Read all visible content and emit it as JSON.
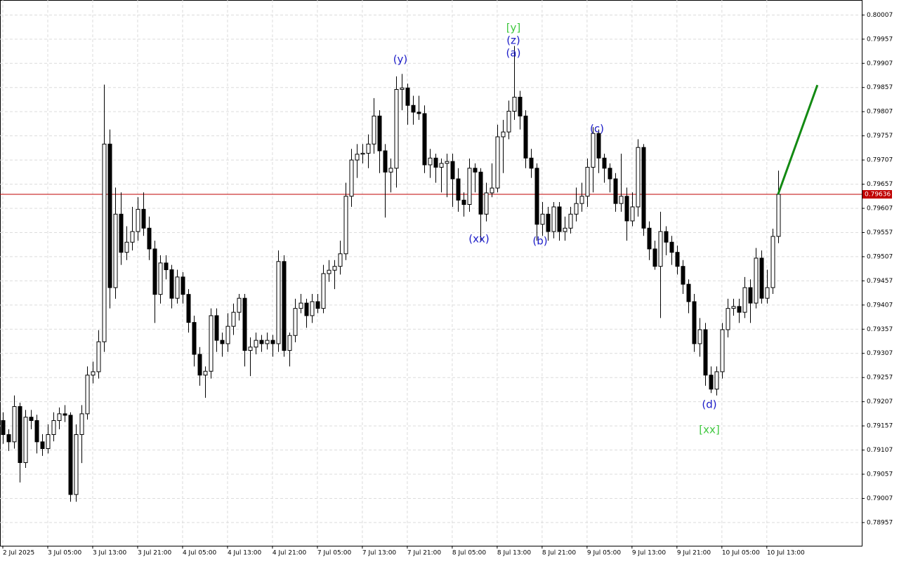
{
  "chart_data": {
    "type": "candlestick",
    "ylim": [
      0.78909,
      0.80038
    ],
    "xlim": [
      -0.5,
      152.9
    ],
    "yticks": [
      0.78957,
      0.79007,
      0.79057,
      0.79107,
      0.79157,
      0.79207,
      0.79257,
      0.79307,
      0.79357,
      0.79407,
      0.79457,
      0.79507,
      0.79557,
      0.79607,
      0.79657,
      0.79707,
      0.79757,
      0.79807,
      0.79857,
      0.79907,
      0.79957,
      0.80007
    ],
    "xticks": [
      {
        "value": 0,
        "label": "2 Jul 2025"
      },
      {
        "value": 8,
        "label": "3 Jul 05:00"
      },
      {
        "value": 16,
        "label": "3 Jul 13:00"
      },
      {
        "value": 24,
        "label": "3 Jul 21:00"
      },
      {
        "value": 32,
        "label": "4 Jul 05:00"
      },
      {
        "value": 40,
        "label": "4 Jul 13:00"
      },
      {
        "value": 48,
        "label": "4 Jul 21:00"
      },
      {
        "value": 56,
        "label": "7 Jul 05:00"
      },
      {
        "value": 64,
        "label": "7 Jul 13:00"
      },
      {
        "value": 72,
        "label": "7 Jul 21:00"
      },
      {
        "value": 80,
        "label": "8 Jul 05:00"
      },
      {
        "value": 88,
        "label": "8 Jul 13:00"
      },
      {
        "value": 96,
        "label": "8 Jul 21:00"
      },
      {
        "value": 104,
        "label": "9 Jul 05:00"
      },
      {
        "value": 112,
        "label": "9 Jul 13:00"
      },
      {
        "value": 120,
        "label": "9 Jul 21:00"
      },
      {
        "value": 128,
        "label": "10 Jul 05:00"
      },
      {
        "value": 136,
        "label": "10 Jul 13:00"
      }
    ],
    "grid": true,
    "up_color": "#ffffff",
    "down_color": "#000000",
    "current_price": 0.79636,
    "current_price_color": "#c00000",
    "projection": {
      "x": [
        138,
        145
      ],
      "values": [
        0.79636,
        0.79862
      ],
      "color": "#138a13"
    },
    "annotations": [
      {
        "text": "[y]",
        "color": "#3ec73e"
      },
      {
        "text": "(z)",
        "color": "#1c1cc8"
      },
      {
        "text": "(a)",
        "color": "#1c1cc8"
      },
      {
        "text": "(y)",
        "color": "#1c1cc8"
      },
      {
        "text": "(xx)",
        "color": "#1c1cc8"
      },
      {
        "text": "(b)",
        "color": "#1c1cc8"
      },
      {
        "text": "(c)",
        "color": "#1c1cc8"
      },
      {
        "text": "(d)",
        "color": "#1c1cc8"
      },
      {
        "text": "[xx]",
        "color": "#3ec73e"
      }
    ],
    "ohlc": [
      [
        0.79168,
        0.79185,
        0.7912,
        0.79139
      ],
      [
        0.79139,
        0.7915,
        0.79105,
        0.79124
      ],
      [
        0.79124,
        0.7922,
        0.7911,
        0.79197
      ],
      [
        0.79197,
        0.79205,
        0.7904,
        0.79081
      ],
      [
        0.79081,
        0.7919,
        0.7907,
        0.79175
      ],
      [
        0.79175,
        0.7919,
        0.7915,
        0.79168
      ],
      [
        0.79168,
        0.7918,
        0.791,
        0.79124
      ],
      [
        0.79124,
        0.7914,
        0.79095,
        0.7911
      ],
      [
        0.7911,
        0.7916,
        0.791,
        0.79139
      ],
      [
        0.79139,
        0.79185,
        0.79125,
        0.79168
      ],
      [
        0.79168,
        0.79195,
        0.7915,
        0.79182
      ],
      [
        0.79182,
        0.792,
        0.79165,
        0.79179
      ],
      [
        0.79179,
        0.79185,
        0.79,
        0.79015
      ],
      [
        0.79015,
        0.7916,
        0.79,
        0.79139
      ],
      [
        0.79139,
        0.792,
        0.7908,
        0.79182
      ],
      [
        0.79182,
        0.7928,
        0.7917,
        0.79262
      ],
      [
        0.79262,
        0.7929,
        0.79245,
        0.79269
      ],
      [
        0.79269,
        0.79355,
        0.79255,
        0.79331
      ],
      [
        0.79331,
        0.79863,
        0.7931,
        0.7974
      ],
      [
        0.7974,
        0.7977,
        0.794,
        0.79443
      ],
      [
        0.79443,
        0.7965,
        0.7942,
        0.79595
      ],
      [
        0.79595,
        0.7964,
        0.7949,
        0.79516
      ],
      [
        0.79516,
        0.7957,
        0.795,
        0.79537
      ],
      [
        0.79537,
        0.7961,
        0.7952,
        0.79559
      ],
      [
        0.79559,
        0.7963,
        0.7954,
        0.79605
      ],
      [
        0.79605,
        0.7964,
        0.7955,
        0.79566
      ],
      [
        0.79566,
        0.7959,
        0.795,
        0.79523
      ],
      [
        0.79523,
        0.7954,
        0.7937,
        0.79429
      ],
      [
        0.79429,
        0.7951,
        0.7941,
        0.79494
      ],
      [
        0.79494,
        0.7951,
        0.7946,
        0.7948
      ],
      [
        0.7948,
        0.7949,
        0.794,
        0.79421
      ],
      [
        0.79421,
        0.7948,
        0.7941,
        0.79465
      ],
      [
        0.79465,
        0.79475,
        0.7941,
        0.79429
      ],
      [
        0.79429,
        0.7944,
        0.7935,
        0.79371
      ],
      [
        0.79371,
        0.79385,
        0.7928,
        0.79305
      ],
      [
        0.79305,
        0.7932,
        0.7924,
        0.79262
      ],
      [
        0.79262,
        0.7928,
        0.79215,
        0.7927
      ],
      [
        0.7927,
        0.794,
        0.79255,
        0.79385
      ],
      [
        0.79385,
        0.794,
        0.7931,
        0.79334
      ],
      [
        0.79334,
        0.7935,
        0.793,
        0.79327
      ],
      [
        0.79327,
        0.7939,
        0.7931,
        0.79363
      ],
      [
        0.79363,
        0.7941,
        0.79345,
        0.79392
      ],
      [
        0.79392,
        0.7943,
        0.79375,
        0.79421
      ],
      [
        0.79421,
        0.7943,
        0.7928,
        0.79313
      ],
      [
        0.79313,
        0.7934,
        0.7926,
        0.7932
      ],
      [
        0.7932,
        0.7935,
        0.79305,
        0.79334
      ],
      [
        0.79334,
        0.79345,
        0.7931,
        0.79327
      ],
      [
        0.79327,
        0.7935,
        0.79315,
        0.79334
      ],
      [
        0.79334,
        0.79345,
        0.793,
        0.79327
      ],
      [
        0.79327,
        0.7952,
        0.7931,
        0.79497
      ],
      [
        0.79497,
        0.7951,
        0.793,
        0.79313
      ],
      [
        0.79313,
        0.7935,
        0.7928,
        0.79344
      ],
      [
        0.79344,
        0.7942,
        0.7933,
        0.794
      ],
      [
        0.794,
        0.7943,
        0.7939,
        0.79411
      ],
      [
        0.79411,
        0.7942,
        0.7936,
        0.79385
      ],
      [
        0.79385,
        0.7943,
        0.7937,
        0.79414
      ],
      [
        0.79414,
        0.7943,
        0.7939,
        0.794
      ],
      [
        0.794,
        0.7949,
        0.7939,
        0.79472
      ],
      [
        0.79472,
        0.795,
        0.79455,
        0.79479
      ],
      [
        0.79479,
        0.795,
        0.7944,
        0.79487
      ],
      [
        0.79487,
        0.7954,
        0.7947,
        0.79513
      ],
      [
        0.79513,
        0.7966,
        0.795,
        0.79632
      ],
      [
        0.79632,
        0.7973,
        0.7961,
        0.79707
      ],
      [
        0.79707,
        0.7974,
        0.7967,
        0.79719
      ],
      [
        0.79719,
        0.7974,
        0.797,
        0.79721
      ],
      [
        0.79721,
        0.7976,
        0.7969,
        0.7974
      ],
      [
        0.7974,
        0.79835,
        0.7972,
        0.79798
      ],
      [
        0.79798,
        0.7981,
        0.7968,
        0.79726
      ],
      [
        0.79726,
        0.7974,
        0.79588,
        0.79682
      ],
      [
        0.79682,
        0.7971,
        0.7964,
        0.7969
      ],
      [
        0.7969,
        0.7988,
        0.7965,
        0.79853
      ],
      [
        0.79853,
        0.79885,
        0.7981,
        0.79856
      ],
      [
        0.79856,
        0.79865,
        0.7978,
        0.7982
      ],
      [
        0.7982,
        0.7984,
        0.7978,
        0.79806
      ],
      [
        0.79806,
        0.7984,
        0.7979,
        0.79803
      ],
      [
        0.79803,
        0.7982,
        0.7968,
        0.79697
      ],
      [
        0.79697,
        0.7973,
        0.7967,
        0.79711
      ],
      [
        0.79711,
        0.7972,
        0.7966,
        0.79692
      ],
      [
        0.79692,
        0.7971,
        0.7964,
        0.797
      ],
      [
        0.797,
        0.7972,
        0.7963,
        0.79704
      ],
      [
        0.79704,
        0.7972,
        0.7961,
        0.79668
      ],
      [
        0.79668,
        0.7969,
        0.796,
        0.79624
      ],
      [
        0.79624,
        0.7964,
        0.7959,
        0.79615
      ],
      [
        0.79615,
        0.7971,
        0.796,
        0.7969
      ],
      [
        0.7969,
        0.797,
        0.7964,
        0.79682
      ],
      [
        0.79682,
        0.7969,
        0.7954,
        0.79595
      ],
      [
        0.79595,
        0.7966,
        0.7958,
        0.79639
      ],
      [
        0.79639,
        0.797,
        0.7963,
        0.79649
      ],
      [
        0.79649,
        0.7978,
        0.7964,
        0.79755
      ],
      [
        0.79755,
        0.7979,
        0.7968,
        0.79765
      ],
      [
        0.79765,
        0.7983,
        0.7975,
        0.79808
      ],
      [
        0.79808,
        0.79943,
        0.7979,
        0.79837
      ],
      [
        0.79837,
        0.7985,
        0.7977,
        0.79798
      ],
      [
        0.79798,
        0.7981,
        0.7969,
        0.79711
      ],
      [
        0.79711,
        0.7973,
        0.7967,
        0.7969
      ],
      [
        0.7969,
        0.797,
        0.7954,
        0.79574
      ],
      [
        0.79574,
        0.7962,
        0.7955,
        0.79595
      ],
      [
        0.79595,
        0.7961,
        0.7954,
        0.79559
      ],
      [
        0.79559,
        0.7962,
        0.79545,
        0.7961
      ],
      [
        0.7961,
        0.7962,
        0.7954,
        0.79559
      ],
      [
        0.79559,
        0.7959,
        0.7954,
        0.79566
      ],
      [
        0.79566,
        0.7961,
        0.79555,
        0.79595
      ],
      [
        0.79595,
        0.7965,
        0.7958,
        0.79617
      ],
      [
        0.79617,
        0.7966,
        0.796,
        0.79632
      ],
      [
        0.79632,
        0.7971,
        0.7961,
        0.79692
      ],
      [
        0.79692,
        0.79775,
        0.7964,
        0.79762
      ],
      [
        0.79762,
        0.7977,
        0.7968,
        0.79711
      ],
      [
        0.79711,
        0.7972,
        0.7966,
        0.7969
      ],
      [
        0.7969,
        0.797,
        0.7964,
        0.79668
      ],
      [
        0.79668,
        0.7968,
        0.796,
        0.79617
      ],
      [
        0.79617,
        0.7972,
        0.796,
        0.79632
      ],
      [
        0.79632,
        0.7965,
        0.7954,
        0.79581
      ],
      [
        0.79581,
        0.7964,
        0.7957,
        0.7961
      ],
      [
        0.7961,
        0.7975,
        0.7959,
        0.79733
      ],
      [
        0.79733,
        0.7974,
        0.7955,
        0.79566
      ],
      [
        0.79566,
        0.7958,
        0.795,
        0.79523
      ],
      [
        0.79523,
        0.7954,
        0.7948,
        0.79487
      ],
      [
        0.79487,
        0.796,
        0.7938,
        0.79559
      ],
      [
        0.79559,
        0.7957,
        0.7951,
        0.79537
      ],
      [
        0.79537,
        0.7955,
        0.7949,
        0.79516
      ],
      [
        0.79516,
        0.7953,
        0.7947,
        0.79487
      ],
      [
        0.79487,
        0.795,
        0.7943,
        0.7945
      ],
      [
        0.7945,
        0.7946,
        0.7939,
        0.79414
      ],
      [
        0.79414,
        0.7943,
        0.7931,
        0.79327
      ],
      [
        0.79327,
        0.7938,
        0.793,
        0.79356
      ],
      [
        0.79356,
        0.7937,
        0.7924,
        0.79262
      ],
      [
        0.79262,
        0.7928,
        0.79225,
        0.79233
      ],
      [
        0.79233,
        0.7928,
        0.7922,
        0.79269
      ],
      [
        0.79269,
        0.7937,
        0.79255,
        0.79356
      ],
      [
        0.79356,
        0.7942,
        0.7934,
        0.794
      ],
      [
        0.794,
        0.7942,
        0.79385,
        0.79404
      ],
      [
        0.79404,
        0.7942,
        0.7937,
        0.79392
      ],
      [
        0.79392,
        0.79465,
        0.7938,
        0.79443
      ],
      [
        0.79443,
        0.7946,
        0.7937,
        0.79411
      ],
      [
        0.79411,
        0.79525,
        0.794,
        0.79504
      ],
      [
        0.79504,
        0.7952,
        0.7941,
        0.79421
      ],
      [
        0.79421,
        0.7948,
        0.7941,
        0.79443
      ],
      [
        0.79443,
        0.79565,
        0.7943,
        0.79549
      ],
      [
        0.79549,
        0.79685,
        0.79535,
        0.79636
      ]
    ]
  }
}
